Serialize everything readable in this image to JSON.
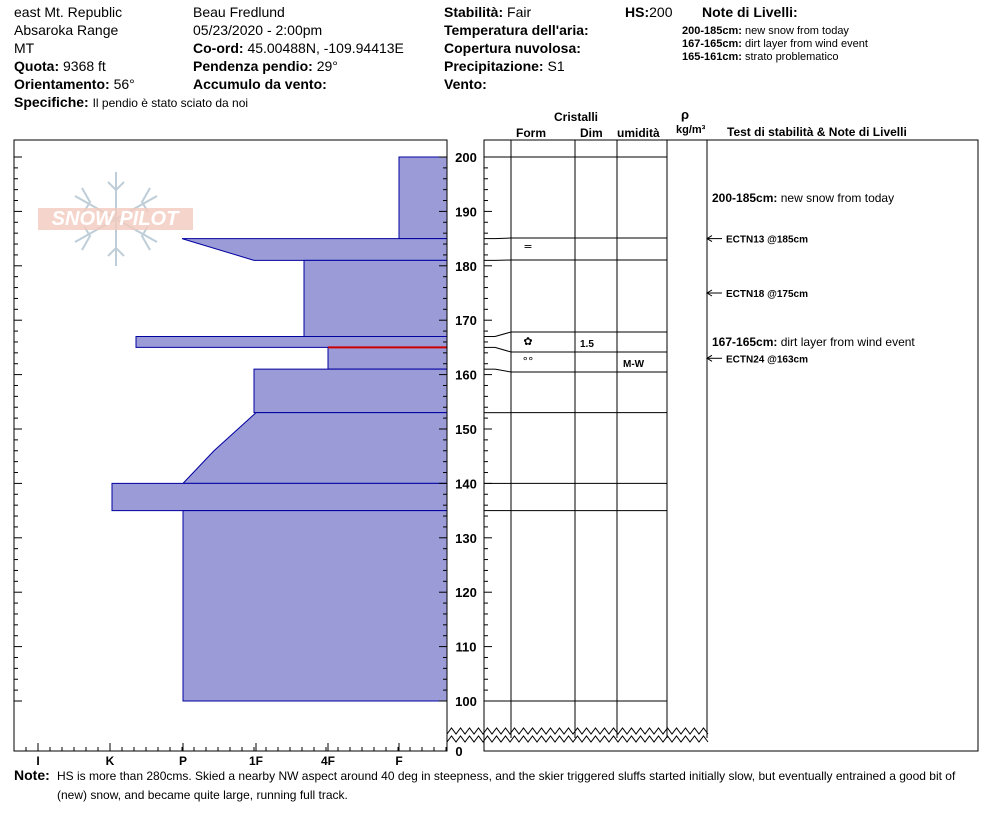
{
  "header": {
    "location": "east Mt. Republic",
    "range": "Absaroka Range",
    "state": "MT",
    "observer": "Beau  Fredlund",
    "datetime": "05/23/2020 - 2:00pm",
    "elevation_label": "Quota:",
    "elevation_value": "9368 ft",
    "aspect_label": "Orientamento:",
    "aspect_value": "56°",
    "specifics_label": "Specifiche:",
    "specifics_value": "Il pendio è stato sciato da noi",
    "coord_label": "Co-ord:",
    "coord_value": "45.00488N, -109.94413E",
    "slope_label": "Pendenza pendio:",
    "slope_value": "29°",
    "wind_loading_label": "Accumulo da vento:",
    "stability_label": "Stabilità:",
    "stability_value": "Fair",
    "air_temp_label": "Temperatura dell'aria:",
    "cloud_label": "Copertura nuvolosa:",
    "precip_label": "Precipitazione:",
    "precip_value": "S1",
    "wind_label": "Vento:",
    "hs_label": "HS:",
    "hs_value": "200",
    "layer_notes_title": "Note di Livelli:",
    "layer_notes": [
      {
        "range": "200-185cm:",
        "text": "new snow from today"
      },
      {
        "range": "167-165cm:",
        "text": "dirt layer from wind event"
      },
      {
        "range": "165-161cm:",
        "text": "strato problematico"
      }
    ]
  },
  "logo": {
    "text": "SNOW PILOT"
  },
  "columns": {
    "crystals": "Cristalli",
    "form": "Form",
    "size": "Dim",
    "moisture": "umidità",
    "density_symbol": "ρ",
    "density_unit": "kg/m³",
    "stability_notes": "Test di stabilità & Note di Livelli"
  },
  "chart_data": {
    "type": "area",
    "title": "",
    "x_axis": {
      "ticks": [
        "I",
        "K",
        "P",
        "1F",
        "4F",
        "F"
      ],
      "direction": "hardness increases to the left"
    },
    "y_axis": {
      "ticks": [
        200,
        190,
        180,
        170,
        160,
        150,
        140,
        130,
        120,
        110,
        100
      ],
      "bottom_label": "0",
      "range": [
        100,
        200
      ],
      "break_below": 100
    },
    "hardness_profile": [
      {
        "top": 200,
        "bottom": 185,
        "hardness_top": "F",
        "hardness_bottom": "F"
      },
      {
        "top": 185,
        "bottom": 181,
        "hardness_top": "K+",
        "hardness_bottom": "P-1F"
      },
      {
        "top": 181,
        "bottom": 167,
        "hardness_top": "1F-4F",
        "hardness_bottom": "1F-4F"
      },
      {
        "top": 167,
        "bottom": 165,
        "hardness_top": "K-P",
        "hardness_bottom": "K-P"
      },
      {
        "top": 165,
        "bottom": 161,
        "hardness_top": "4F",
        "hardness_bottom": "4F"
      },
      {
        "top": 161,
        "bottom": 153,
        "hardness_top": "P-1F",
        "hardness_bottom": "P-1F"
      },
      {
        "top": 153,
        "bottom": 140,
        "hardness_top": "1F",
        "hardness_bottom": "P"
      },
      {
        "top": 140,
        "bottom": 135,
        "hardness_top": "K-",
        "hardness_bottom": "K-"
      },
      {
        "top": 135,
        "bottom": 100,
        "hardness_top": "P",
        "hardness_bottom": "P"
      }
    ],
    "weak_layer_marker": 165,
    "layer_boundaries": [
      200,
      185,
      181,
      167,
      165,
      161,
      153,
      140,
      135,
      100
    ],
    "layers": [
      {
        "top": 185,
        "bottom": 181,
        "form": "=",
        "size": "",
        "moisture": ""
      },
      {
        "top": 167,
        "bottom": 165,
        "form": "✿",
        "size": "1.5",
        "moisture": ""
      },
      {
        "top": 165,
        "bottom": 161,
        "form": "°°",
        "size": "",
        "moisture": "M-W"
      }
    ],
    "stability_tests": [
      {
        "label": "ECTN13 @185cm",
        "depth": 185
      },
      {
        "label": "ECTN18 @175cm",
        "depth": 175
      },
      {
        "label": "ECTN24 @163cm",
        "depth": 163
      }
    ],
    "side_notes": [
      {
        "range": "200-185cm:",
        "text": "new snow from today",
        "depth": 192.5
      },
      {
        "range": "167-165cm:",
        "text": "dirt layer from wind event",
        "depth": 166
      }
    ]
  },
  "footer": {
    "note_label": "Note:",
    "note_line1": "HS is more than 280cms.  Skied a nearby NW aspect around 40 deg in steepness, and the skier  triggered sluffs started initially slow, but eventually entrained a good bit of",
    "note_line2": "(new) snow, and became quite large, running full track."
  },
  "colors": {
    "fill": "#9b9bd8",
    "outline": "#0000a0",
    "marker": "#cc0000"
  }
}
